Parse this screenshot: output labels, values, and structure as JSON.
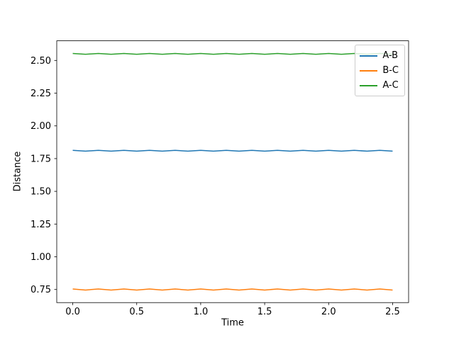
{
  "figure": {
    "background": "#ffffff"
  },
  "chart_data": {
    "type": "line",
    "title": "",
    "xlabel": "Time",
    "ylabel": "Distance",
    "grid": false,
    "xlim": [
      -0.125,
      2.625
    ],
    "ylim": [
      0.65,
      2.65
    ],
    "xticks": [
      0.0,
      0.5,
      1.0,
      1.5,
      2.0,
      2.5
    ],
    "xtick_labels": [
      "0.0",
      "0.5",
      "1.0",
      "1.5",
      "2.0",
      "2.5"
    ],
    "yticks": [
      0.75,
      1.0,
      1.25,
      1.5,
      1.75,
      2.0,
      2.25,
      2.5
    ],
    "ytick_labels": [
      "0.75",
      "1.00",
      "1.25",
      "1.50",
      "1.75",
      "2.00",
      "2.25",
      "2.50"
    ],
    "legend": {
      "position": "upper right",
      "entries": [
        "A-B",
        "B-C",
        "A-C"
      ]
    },
    "x": [
      0.0,
      0.1,
      0.2,
      0.3,
      0.4,
      0.5,
      0.6,
      0.7,
      0.8,
      0.9,
      1.0,
      1.1,
      1.2,
      1.3,
      1.4,
      1.5,
      1.6,
      1.7,
      1.8,
      1.9,
      2.0,
      2.1,
      2.2,
      2.3,
      2.4,
      2.5
    ],
    "series": [
      {
        "name": "A-B",
        "color": "#1f77b4",
        "base": 1.81,
        "values": [
          1.813,
          1.807,
          1.813,
          1.807,
          1.813,
          1.807,
          1.813,
          1.807,
          1.813,
          1.807,
          1.813,
          1.807,
          1.813,
          1.807,
          1.813,
          1.807,
          1.813,
          1.807,
          1.813,
          1.807,
          1.813,
          1.807,
          1.813,
          1.807,
          1.813,
          1.807
        ]
      },
      {
        "name": "B-C",
        "color": "#ff7f0e",
        "base": 0.75,
        "values": [
          0.754,
          0.746,
          0.754,
          0.746,
          0.754,
          0.746,
          0.754,
          0.746,
          0.754,
          0.746,
          0.754,
          0.746,
          0.754,
          0.746,
          0.754,
          0.746,
          0.754,
          0.746,
          0.754,
          0.746,
          0.754,
          0.746,
          0.754,
          0.746,
          0.754,
          0.746
        ]
      },
      {
        "name": "A-C",
        "color": "#2ca02c",
        "base": 2.55,
        "values": [
          2.553,
          2.547,
          2.553,
          2.547,
          2.553,
          2.547,
          2.553,
          2.547,
          2.553,
          2.547,
          2.553,
          2.547,
          2.553,
          2.547,
          2.553,
          2.547,
          2.553,
          2.547,
          2.553,
          2.547,
          2.553,
          2.547,
          2.553,
          2.547,
          2.553,
          2.547
        ]
      }
    ]
  }
}
